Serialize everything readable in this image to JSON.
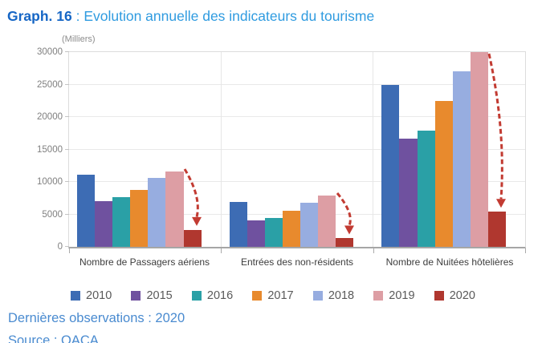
{
  "header": {
    "label": "Graph. 16",
    "title_suffix": " : Evolution annuelle des indicateurs du tourisme"
  },
  "footer": {
    "observations": "Dernières observations : 2020",
    "source": "Source : OACA"
  },
  "colors": {
    "title_label": "#1666c5",
    "title_text": "#2f9be0",
    "footer_text": "#4a8bd0",
    "axis_text": "#7f7f7f",
    "category_text": "#3d3d3d",
    "legend_text": "#595959",
    "arrow": "#c23b32"
  },
  "chart_data": {
    "type": "bar",
    "title": "Evolution annuelle des indicateurs du tourisme",
    "unit_label": "(Milliers)",
    "categories": [
      "Nombre de Passagers aériens",
      "Entrées des non-résidents",
      "Nombre de Nuitées hôtelières"
    ],
    "series": [
      {
        "name": "2010",
        "color": "#3d6cb4",
        "values": [
          11100,
          6900,
          25000
        ]
      },
      {
        "name": "2015",
        "color": "#6f519f",
        "values": [
          7100,
          4100,
          16700
        ]
      },
      {
        "name": "2016",
        "color": "#2aa0a6",
        "values": [
          7700,
          4400,
          17900
        ]
      },
      {
        "name": "2017",
        "color": "#e88a2d",
        "values": [
          8800,
          5600,
          22500
        ]
      },
      {
        "name": "2018",
        "color": "#97ade0",
        "values": [
          10600,
          6800,
          27100
        ]
      },
      {
        "name": "2019",
        "color": "#dd9ea4",
        "values": [
          11600,
          7900,
          30000
        ]
      },
      {
        "name": "2020",
        "color": "#b0372f",
        "values": [
          2600,
          1300,
          5400
        ]
      }
    ],
    "ylim": [
      0,
      30000
    ],
    "ytick_step": 5000,
    "grid": true,
    "legend_position": "bottom",
    "annotations": [
      {
        "type": "decline-arrow",
        "from_series": "2019",
        "to_series": "2020",
        "groups": [
          0,
          1,
          2
        ],
        "color": "#c23b32"
      }
    ]
  }
}
